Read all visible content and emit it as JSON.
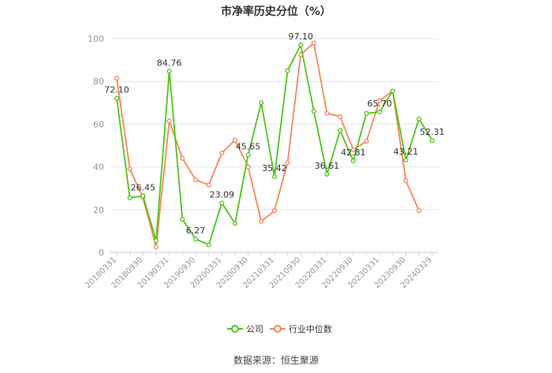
{
  "title": "市净率历史分位（%）",
  "footer": "数据来源：恒生聚源",
  "colors": {
    "company": "#52c41a",
    "industry": "#f5875a",
    "grid": "#e6e6e6",
    "axis_text": "#999999",
    "label_text": "#333333"
  },
  "chart_data": {
    "type": "line",
    "title": "市净率历史分位（%）",
    "xlabel": "",
    "ylabel": "",
    "ylim": [
      0,
      100
    ],
    "y_ticks": [
      0,
      20,
      40,
      60,
      80,
      100
    ],
    "grid": true,
    "legend_position": "bottom",
    "x": [
      "20180331",
      "20180630",
      "20180930",
      "20181231",
      "20190331",
      "20190630",
      "20190930",
      "20191231",
      "20200331",
      "20200630",
      "20200930",
      "20201231",
      "20210331",
      "20210630",
      "20210930",
      "20211231",
      "20220331",
      "20220630",
      "20220930",
      "20221231",
      "20230331",
      "20230630",
      "20230930",
      "20231231",
      "20240329"
    ],
    "x_tick_labels": [
      "20180331",
      "",
      "20180930",
      "",
      "20190331",
      "",
      "20190930",
      "",
      "20200331",
      "",
      "20200930",
      "",
      "20210331",
      "",
      "20210930",
      "",
      "20220331",
      "",
      "20220930",
      "",
      "20230331",
      "",
      "20230930",
      "",
      "20240329"
    ],
    "series": [
      {
        "name": "公司",
        "color": "#52c41a",
        "values": [
          72.1,
          25.5,
          26.45,
          5.5,
          84.76,
          15.5,
          6.27,
          3.5,
          23.09,
          13.5,
          45.65,
          70.0,
          35.42,
          85.0,
          97.1,
          66.0,
          36.61,
          57.0,
          42.81,
          65.0,
          65.7,
          75.5,
          43.21,
          62.5,
          52.31
        ],
        "labels": [
          "72.10",
          "",
          "26.45",
          "",
          "84.76",
          "",
          "6.27",
          "",
          "23.09",
          "",
          "45.65",
          "",
          "35.42",
          "",
          "97.10",
          "",
          "36.61",
          "",
          "42.81",
          "",
          "65.70",
          "",
          "43.21",
          "",
          "52.31"
        ]
      },
      {
        "name": "行业中位数",
        "color": "#f5875a",
        "values": [
          81.5,
          39.0,
          25.5,
          2.5,
          61.5,
          44.0,
          34.0,
          31.5,
          46.5,
          52.5,
          40.0,
          14.5,
          19.5,
          42.0,
          92.5,
          98.0,
          65.0,
          63.5,
          48.0,
          52.0,
          71.0,
          75.5,
          33.5,
          19.5,
          null
        ]
      }
    ]
  }
}
